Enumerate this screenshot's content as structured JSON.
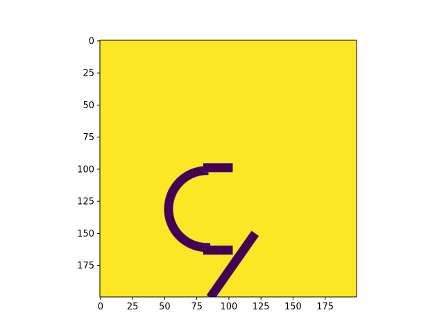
{
  "chart_data": {
    "type": "heatmap",
    "title": "",
    "xlabel": "",
    "ylabel": "",
    "xlim": [
      -0.5,
      199.5
    ],
    "ylim": [
      199.5,
      -0.5
    ],
    "y_axis_inverted": true,
    "grid": false,
    "legend": "none",
    "image_size": [
      200,
      200
    ],
    "colormap": "viridis",
    "colors": {
      "background": "#fde725",
      "stroke": "#440154",
      "edge": "#3b528b",
      "axis": "#000000",
      "figure_background": "#ffffff"
    },
    "x_ticks": [
      0,
      25,
      50,
      75,
      100,
      125,
      150,
      175
    ],
    "x_tick_labels": [
      "0",
      "25",
      "50",
      "75",
      "100",
      "125",
      "150",
      "175"
    ],
    "y_ticks": [
      0,
      25,
      50,
      75,
      100,
      125,
      150,
      175
    ],
    "y_tick_labels": [
      "0",
      "25",
      "50",
      "75",
      "100",
      "125",
      "150",
      "175"
    ],
    "strokes": [
      {
        "name": "arc",
        "kind": "arc",
        "center": [
          83,
          131
        ],
        "radius": 30,
        "start_deg": -92,
        "end_deg": 95,
        "width": 6.5
      },
      {
        "name": "arc-top-cap",
        "kind": "segment",
        "points": [
          [
            80,
            98.8
          ],
          [
            103,
            98.8
          ]
        ],
        "width": 6.5
      },
      {
        "name": "arc-bottom-cap",
        "kind": "segment",
        "points": [
          [
            80,
            163
          ],
          [
            103,
            163
          ]
        ],
        "width": 6.5
      },
      {
        "name": "diagonal",
        "kind": "segment",
        "points": [
          [
            120.5,
            150
          ],
          [
            85.5,
            200
          ]
        ],
        "width": 6.5
      }
    ]
  }
}
